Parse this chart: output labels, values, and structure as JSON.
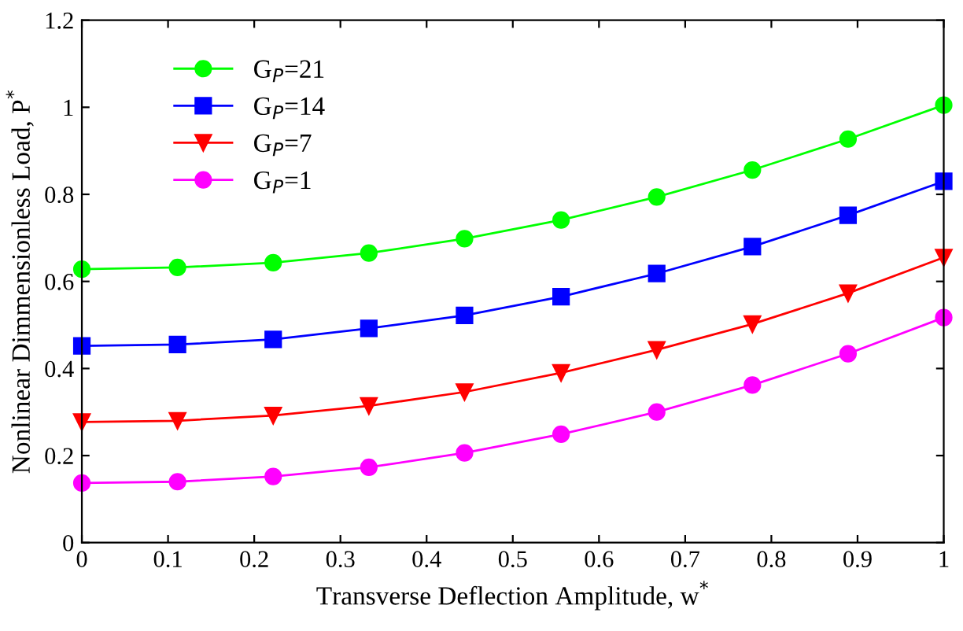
{
  "chart_data": {
    "type": "line",
    "xlabel": "Transverse Deflection Amplitude, w$^{*}$",
    "ylabel": "Nonlinear Dimmensionless Load, P$^{*}$",
    "x": [
      0,
      0.111,
      0.222,
      0.333,
      0.444,
      0.556,
      0.667,
      0.778,
      0.889,
      1
    ],
    "series": [
      {
        "name": "G$_{P}$=21",
        "color": "#00ff00",
        "marker": "circle",
        "values": [
          0.628,
          0.632,
          0.643,
          0.665,
          0.698,
          0.741,
          0.794,
          0.856,
          0.927,
          1.005
        ]
      },
      {
        "name": "G$_{P}$=14",
        "color": "#0000ff",
        "marker": "square",
        "values": [
          0.452,
          0.455,
          0.467,
          0.492,
          0.522,
          0.565,
          0.618,
          0.68,
          0.752,
          0.83
        ]
      },
      {
        "name": "G$_{P}$=7",
        "color": "#ff0000",
        "marker": "triangle",
        "values": [
          0.277,
          0.28,
          0.292,
          0.314,
          0.346,
          0.39,
          0.443,
          0.502,
          0.573,
          0.655
        ]
      },
      {
        "name": "G$_{P}$=1",
        "color": "#ff00ff",
        "marker": "circle",
        "values": [
          0.137,
          0.14,
          0.152,
          0.173,
          0.206,
          0.249,
          0.3,
          0.362,
          0.434,
          0.517
        ]
      }
    ],
    "xlim": [
      0,
      1
    ],
    "xticks": [
      0,
      0.1,
      0.2,
      0.3,
      0.4,
      0.5,
      0.6,
      0.7,
      0.8,
      0.9,
      1
    ],
    "ylim": [
      0,
      1.2
    ],
    "yticks": [
      0,
      0.2,
      0.4,
      0.6,
      0.8,
      1,
      1.2
    ],
    "grid": false,
    "legend": "top left",
    "line_style": "solid"
  }
}
